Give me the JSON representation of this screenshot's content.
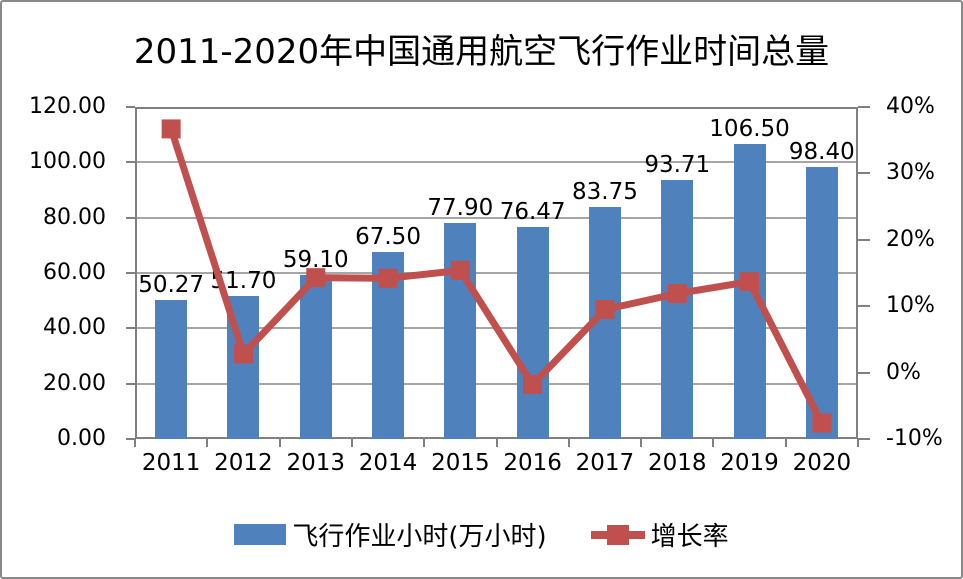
{
  "chart_data": {
    "type": "combo-bar-line",
    "title": "2011-2020年中国通用航空飞行作业时间总量",
    "categories": [
      "2011",
      "2012",
      "2013",
      "2014",
      "2015",
      "2016",
      "2017",
      "2018",
      "2019",
      "2020"
    ],
    "series": [
      {
        "name": "飞行作业小时(万小时)",
        "type": "bar",
        "axis": "left",
        "color": "#4f81bd",
        "values": [
          50.27,
          51.7,
          59.1,
          67.5,
          77.9,
          76.47,
          83.75,
          93.71,
          106.5,
          98.4
        ],
        "data_labels": [
          "50.27",
          "51.70",
          "59.10",
          "67.50",
          "77.90",
          "76.47",
          "83.75",
          "93.71",
          "106.50",
          "98.40"
        ]
      },
      {
        "name": "增长率",
        "type": "line",
        "axis": "right",
        "color": "#c0504d",
        "values_percent": [
          36.7,
          2.8,
          14.3,
          14.2,
          15.4,
          -1.8,
          9.5,
          11.9,
          13.7,
          -7.6
        ]
      }
    ],
    "left_axis": {
      "min": 0,
      "max": 120,
      "tick_labels": [
        "120.00",
        "100.00",
        "80.00",
        "60.00",
        "40.00",
        "20.00",
        "0.00"
      ]
    },
    "right_axis": {
      "min": -10,
      "max": 40,
      "tick_labels": [
        "40%",
        "30%",
        "20%",
        "10%",
        "0%",
        "-10%"
      ]
    },
    "grid": true,
    "legend_position": "bottom",
    "colors": {
      "bar": "#4f81bd",
      "line": "#c0504d",
      "gridline": "#a6a6a6",
      "axis": "#808080",
      "text": "#000000",
      "background": "#ffffff"
    }
  }
}
